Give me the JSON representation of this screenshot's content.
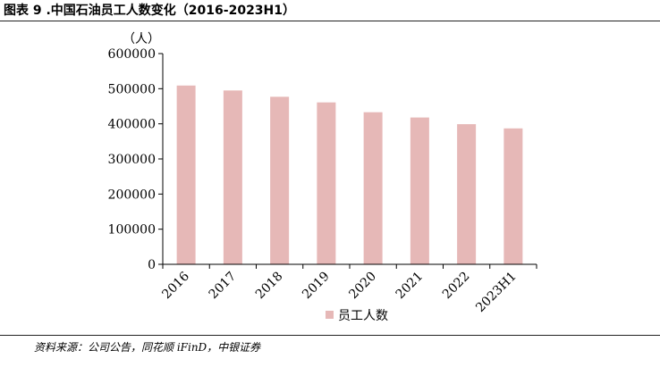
{
  "figure": {
    "title": "图表 9 .中国石油员工人数变化（2016-2023H1）",
    "source": "资料来源：公司公告，同花顺 iFinD，中银证券"
  },
  "chart_data": {
    "type": "bar",
    "categories": [
      "2016",
      "2017",
      "2018",
      "2019",
      "2020",
      "2021",
      "2022",
      "2023H1"
    ],
    "series": [
      {
        "name": "员工人数",
        "values": [
          509000,
          495000,
          477000,
          461000,
          433000,
          418000,
          399000,
          387000
        ]
      }
    ],
    "title": "",
    "xlabel": "",
    "ylabel": "（人）",
    "ylim": [
      0,
      600000
    ],
    "yticks": [
      "0",
      "100000",
      "200000",
      "300000",
      "400000",
      "500000",
      "600000"
    ],
    "grid": false,
    "legend": "bottom-center",
    "bar_color": "#e6b8b7"
  }
}
